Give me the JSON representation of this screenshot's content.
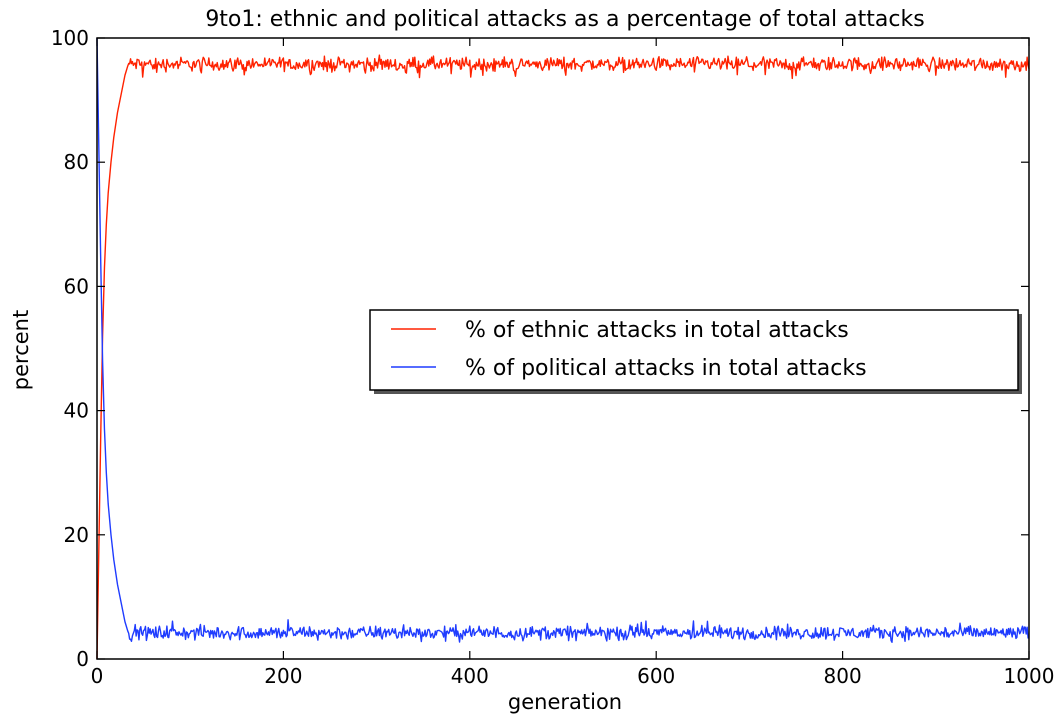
{
  "chart_data": {
    "type": "line",
    "title": "9to1: ethnic and political attacks as a percentage of total attacks",
    "xlabel": "generation",
    "ylabel": "percent",
    "xlim": [
      0,
      1000
    ],
    "ylim": [
      0,
      100
    ],
    "x_ticks": [
      "0",
      "200",
      "400",
      "600",
      "800",
      "1000"
    ],
    "y_ticks": [
      "0",
      "20",
      "40",
      "60",
      "80",
      "100"
    ],
    "grid": false,
    "legend_position": "center-right",
    "series": [
      {
        "name": "% of ethnic attacks in total attacks",
        "color": "#ff2200",
        "steady_level": 95.8,
        "ramp": [
          [
            0,
            0
          ],
          [
            2,
            18
          ],
          [
            4,
            36
          ],
          [
            6,
            52
          ],
          [
            8,
            63
          ],
          [
            10,
            70
          ],
          [
            12,
            75
          ],
          [
            15,
            80
          ],
          [
            18,
            84
          ],
          [
            22,
            88
          ],
          [
            26,
            91
          ],
          [
            30,
            94
          ],
          [
            33,
            95.5
          ]
        ]
      },
      {
        "name": "% of political attacks in total attacks",
        "color": "#1f3cff",
        "steady_level": 4.2,
        "ramp": [
          [
            0,
            100
          ],
          [
            2,
            82
          ],
          [
            4,
            64
          ],
          [
            6,
            48
          ],
          [
            8,
            37
          ],
          [
            10,
            30
          ],
          [
            12,
            25
          ],
          [
            15,
            20
          ],
          [
            18,
            16
          ],
          [
            22,
            12
          ],
          [
            26,
            9
          ],
          [
            30,
            6
          ],
          [
            33,
            4.5
          ]
        ]
      }
    ]
  }
}
